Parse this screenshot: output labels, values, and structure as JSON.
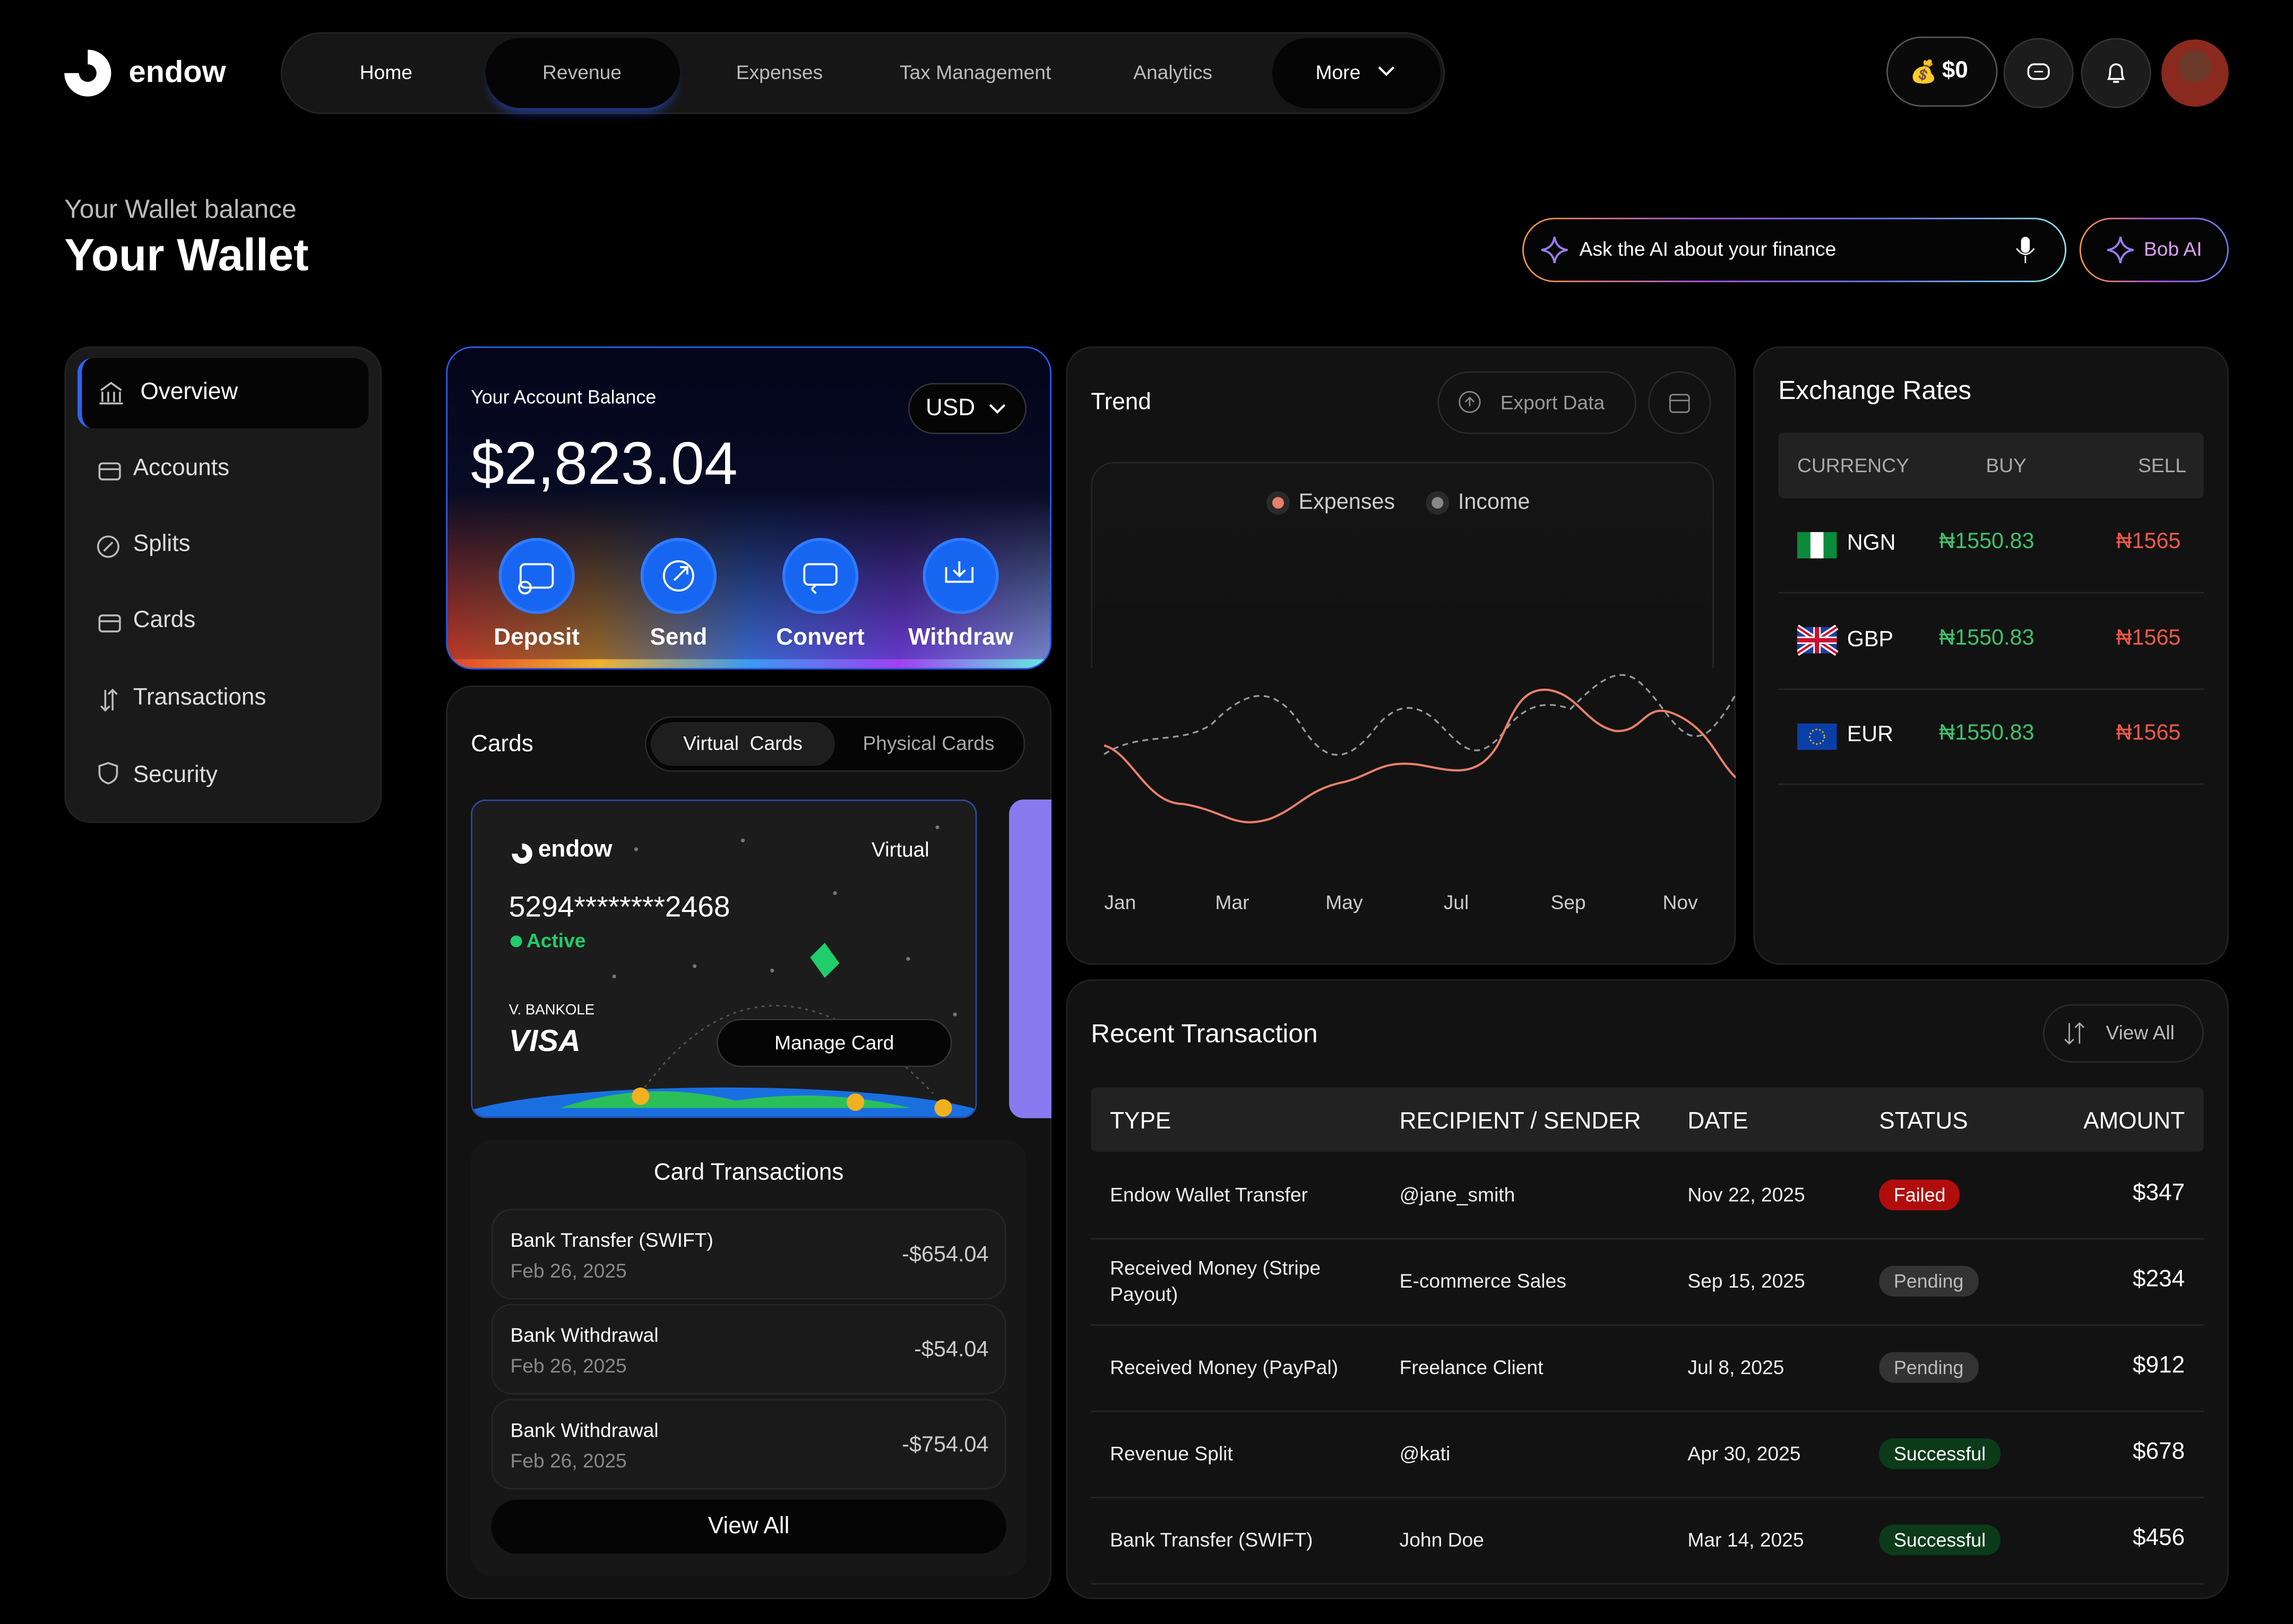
{
  "nav": {
    "brand": "endow",
    "links": [
      "Home",
      "Revenue",
      "Expenses",
      "Tax Management",
      "Analytics",
      "More"
    ],
    "balance": "$0"
  },
  "header": {
    "subtitle": "Your Wallet balance",
    "title": "Your Wallet"
  },
  "ai": {
    "placeholder": "Ask the AI about your finance",
    "button": "Bob AI"
  },
  "sidebar": [
    "Overview",
    "Accounts",
    "Splits",
    "Cards",
    "Transactions",
    "Security"
  ],
  "balance": {
    "label": "Your Account Balance",
    "amount": "$2,823.04",
    "currency": "USD",
    "actions": [
      "Deposit",
      "Send",
      "Convert",
      "Withdraw"
    ]
  },
  "cards": {
    "title": "Cards",
    "tabs": [
      "Virtual  Cards",
      "Physical Cards"
    ],
    "card": {
      "brand": "endow",
      "type": "Virtual",
      "number": "5294********2468",
      "status": "Active",
      "holder": "V. BANKOLE",
      "network": "VISA",
      "button": "Manage Card"
    }
  },
  "card_transactions": {
    "title": "Card Transactions",
    "items": [
      {
        "name": "Bank Transfer (SWIFT)",
        "date": "Feb 26, 2025",
        "amount": "-$654.04"
      },
      {
        "name": "Bank Withdrawal",
        "date": "Feb 26, 2025",
        "amount": "-$54.04"
      },
      {
        "name": "Bank Withdrawal",
        "date": "Feb 26, 2025",
        "amount": "-$754.04"
      }
    ],
    "view_all": "View All"
  },
  "trend": {
    "title": "Trend",
    "export": "Export Data",
    "legend": [
      {
        "name": "Expenses",
        "color": "#e8806a"
      },
      {
        "name": "Income",
        "color": "#888888"
      }
    ],
    "months": [
      "Jan",
      "Mar",
      "May",
      "Jul",
      "Sep",
      "Nov"
    ]
  },
  "exchange": {
    "title": "Exchange Rates",
    "columns": [
      "CURRENCY",
      "BUY",
      "SELL"
    ],
    "rows": [
      [
        "NGN",
        "₦1550.83",
        "₦1565"
      ],
      [
        "GBP",
        "₦1550.83",
        "₦1565"
      ],
      [
        "EUR",
        "₦1550.83",
        "₦1565"
      ]
    ]
  },
  "transactions": {
    "title": "Recent Transaction",
    "view_all": "View All",
    "columns": [
      "TYPE",
      "RECIPIENT / SENDER",
      "DATE",
      "STATUS",
      "AMOUNT"
    ],
    "rows": [
      {
        "cells": [
          "Endow Wallet Transfer",
          "@jane_smith",
          "Nov 22, 2025",
          "Failed",
          "$347"
        ],
        "status_color": "#b10d0d"
      },
      {
        "cells": [
          "Received Money (Stripe Payout)",
          "E-commerce Sales",
          "Sep 15, 2025",
          "Pending",
          "$234"
        ],
        "status_color": "#333333"
      },
      {
        "cells": [
          "Received Money (PayPal)",
          "Freelance Client",
          "Jul 8, 2025",
          "Pending",
          "$912"
        ],
        "status_color": "#333333"
      },
      {
        "cells": [
          "Revenue Split",
          "@kati",
          "Apr 30, 2025",
          "Successful",
          "$678"
        ],
        "status_color": "#0c3b19"
      },
      {
        "cells": [
          "Bank Transfer (SWIFT)",
          "John Doe",
          "Mar 14, 2025",
          "Successful",
          "$456"
        ],
        "status_color": "#0c3b19"
      }
    ]
  }
}
